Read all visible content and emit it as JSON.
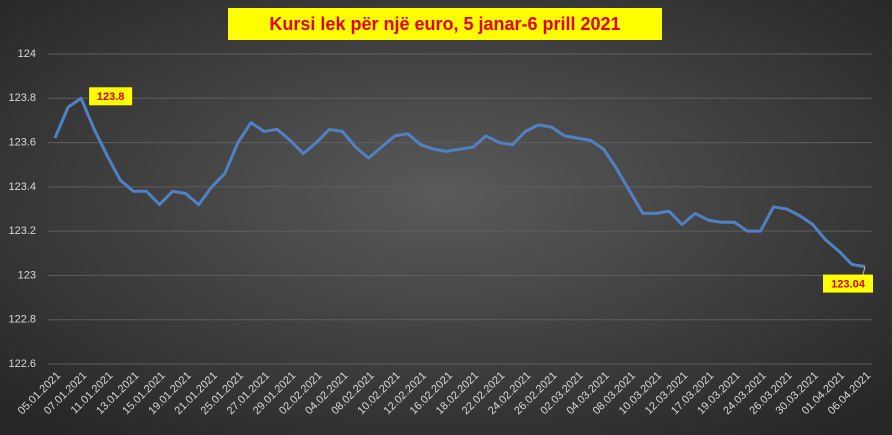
{
  "chart_data": {
    "type": "line",
    "title": "Kursi lek për një euro, 5 janar-6 prill 2021",
    "categories": [
      "05.01.2021",
      null,
      "07.01.2021",
      null,
      "11.01.2021",
      null,
      "13.01.2021",
      null,
      "15.01.2021",
      null,
      "19.01.2021",
      null,
      "21.01.2021",
      null,
      "25.01.2021",
      null,
      "27.01.2021",
      null,
      "29.01.2021",
      null,
      "02.02.2021",
      null,
      "04.02.2021",
      null,
      "08.02.2021",
      null,
      "10.02.2021",
      null,
      "12.02.2021",
      null,
      "16.02.2021",
      null,
      "18.02.2021",
      null,
      "22.02.2021",
      null,
      "24.02.2021",
      null,
      "26.02.2021",
      null,
      "02.03.2021",
      null,
      "04.03.2021",
      null,
      "08.03.2021",
      null,
      "10.03.2021",
      null,
      "12.03.2021",
      null,
      "17.03.2021",
      null,
      "19.03.2021",
      null,
      "24.03.2021",
      null,
      "26.03.2021",
      null,
      "30.03.2021",
      null,
      "01.04.2021",
      null,
      "06.04.2021"
    ],
    "values": [
      123.62,
      123.76,
      123.8,
      123.66,
      123.54,
      123.43,
      123.38,
      123.38,
      123.32,
      123.38,
      123.37,
      123.32,
      123.4,
      123.46,
      123.6,
      123.69,
      123.65,
      123.66,
      123.61,
      123.55,
      123.6,
      123.66,
      123.65,
      123.58,
      123.53,
      123.58,
      123.63,
      123.64,
      123.59,
      123.57,
      123.56,
      123.57,
      123.58,
      123.63,
      123.6,
      123.59,
      123.65,
      123.68,
      123.67,
      123.63,
      123.62,
      123.61,
      123.57,
      123.48,
      123.38,
      123.28,
      123.28,
      123.29,
      123.23,
      123.28,
      123.25,
      123.24,
      123.24,
      123.2,
      123.2,
      123.31,
      123.3,
      123.27,
      123.23,
      123.16,
      123.11,
      123.05,
      123.04
    ],
    "value_labels": [
      null,
      null,
      "123.8",
      null,
      null,
      null,
      null,
      null,
      null,
      null,
      null,
      null,
      null,
      null,
      null,
      null,
      null,
      null,
      null,
      null,
      null,
      null,
      null,
      null,
      null,
      null,
      null,
      null,
      null,
      null,
      null,
      null,
      null,
      null,
      null,
      null,
      null,
      null,
      null,
      null,
      null,
      null,
      null,
      null,
      null,
      null,
      null,
      null,
      null,
      null,
      null,
      null,
      null,
      null,
      null,
      null,
      null,
      null,
      null,
      null,
      null,
      null,
      "123.04"
    ],
    "color": "#4f81c4",
    "ylim": [
      122.6,
      124
    ],
    "yticks": [
      122.6,
      122.8,
      123,
      123.2,
      123.4,
      123.6,
      123.8,
      124
    ],
    "grid": true
  }
}
